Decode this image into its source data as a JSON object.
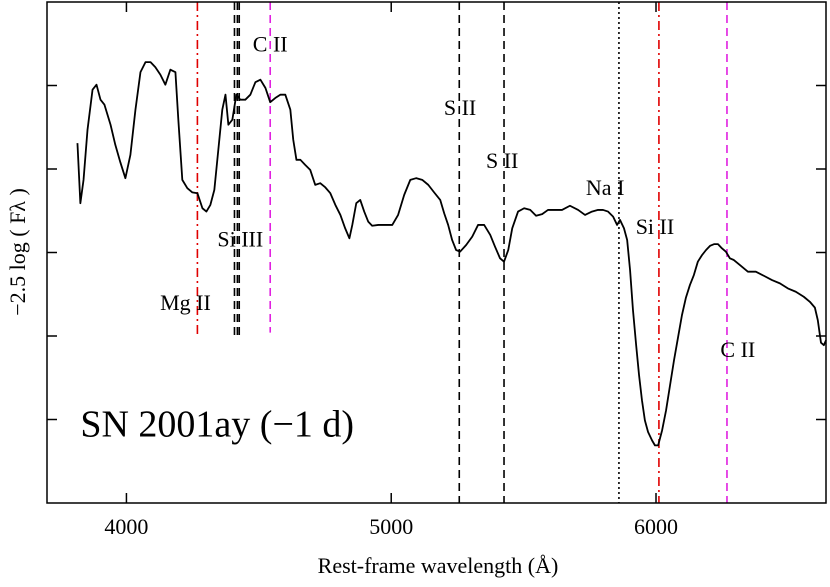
{
  "chart_data": {
    "type": "line",
    "xlabel": "Rest-frame wavelength (Å)",
    "ylabel": "−2.5 log ( Fλ )",
    "xlim": [
      3700,
      6642
    ],
    "xticks": [
      4000,
      5000,
      6000
    ],
    "ylim": [
      0,
      6
    ],
    "yticks": [
      1,
      2,
      3,
      4,
      5
    ],
    "y_inverted": true,
    "series": [
      {
        "color": "#000000",
        "x": [
          3815,
          3826,
          3838,
          3853,
          3872,
          3887,
          3902,
          3917,
          3940,
          3958,
          3977,
          3996,
          4015,
          4034,
          4053,
          4072,
          4091,
          4109,
          4128,
          4147,
          4166,
          4185,
          4196,
          4211,
          4230,
          4249,
          4268,
          4287,
          4302,
          4317,
          4332,
          4347,
          4362,
          4374,
          4385,
          4400,
          4415,
          4430,
          4449,
          4468,
          4487,
          4506,
          4525,
          4543,
          4562,
          4581,
          4600,
          4619,
          4630,
          4642,
          4657,
          4675,
          4694,
          4713,
          4732,
          4751,
          4770,
          4789,
          4808,
          4826,
          4842,
          4853,
          4868,
          4883,
          4898,
          4913,
          4928,
          4951,
          4977,
          5004,
          5026,
          5049,
          5072,
          5094,
          5117,
          5140,
          5162,
          5185,
          5200,
          5215,
          5230,
          5245,
          5260,
          5283,
          5306,
          5328,
          5351,
          5374,
          5392,
          5411,
          5426,
          5442,
          5457,
          5479,
          5502,
          5525,
          5547,
          5570,
          5592,
          5619,
          5645,
          5675,
          5706,
          5732,
          5758,
          5781,
          5800,
          5819,
          5838,
          5853,
          5864,
          5879,
          5891,
          5902,
          5913,
          5925,
          5936,
          5947,
          5958,
          5970,
          5985,
          5996,
          6008,
          6023,
          6038,
          6053,
          6068,
          6083,
          6098,
          6113,
          6128,
          6143,
          6158,
          6174,
          6189,
          6204,
          6219,
          6234,
          6249,
          6264,
          6279,
          6294,
          6317,
          6347,
          6377,
          6408,
          6438,
          6468,
          6498,
          6528,
          6558,
          6581,
          6600,
          6611,
          6623,
          6634,
          6642
        ],
        "values": [
          1.69,
          2.41,
          2.13,
          1.53,
          1.05,
          0.99,
          1.17,
          1.23,
          1.47,
          1.71,
          1.92,
          2.11,
          1.83,
          1.29,
          0.84,
          0.72,
          0.72,
          0.78,
          0.87,
          0.99,
          0.81,
          0.84,
          1.41,
          2.13,
          2.23,
          2.28,
          2.29,
          2.47,
          2.51,
          2.43,
          2.25,
          1.77,
          1.29,
          1.11,
          1.47,
          1.41,
          1.11,
          1.17,
          1.17,
          1.11,
          0.96,
          0.93,
          1.03,
          1.2,
          1.15,
          1.11,
          1.11,
          1.29,
          1.65,
          1.89,
          1.89,
          1.95,
          2.01,
          2.19,
          2.17,
          2.22,
          2.29,
          2.43,
          2.55,
          2.71,
          2.83,
          2.67,
          2.41,
          2.37,
          2.51,
          2.63,
          2.68,
          2.67,
          2.67,
          2.67,
          2.55,
          2.31,
          2.13,
          2.11,
          2.13,
          2.19,
          2.28,
          2.37,
          2.53,
          2.67,
          2.85,
          2.97,
          2.99,
          2.91,
          2.81,
          2.67,
          2.67,
          2.79,
          2.93,
          3.07,
          3.11,
          2.97,
          2.71,
          2.51,
          2.47,
          2.49,
          2.56,
          2.54,
          2.49,
          2.49,
          2.49,
          2.44,
          2.49,
          2.55,
          2.51,
          2.49,
          2.49,
          2.51,
          2.57,
          2.67,
          2.61,
          2.71,
          2.85,
          3.21,
          3.69,
          4.11,
          4.47,
          4.77,
          5.01,
          5.15,
          5.25,
          5.31,
          5.31,
          5.13,
          4.89,
          4.59,
          4.29,
          4.02,
          3.75,
          3.54,
          3.39,
          3.27,
          3.11,
          3.03,
          2.97,
          2.92,
          2.9,
          2.9,
          2.95,
          2.99,
          3.07,
          3.09,
          3.15,
          3.23,
          3.23,
          3.28,
          3.33,
          3.37,
          3.43,
          3.47,
          3.53,
          3.59,
          3.66,
          3.81,
          4.08,
          4.11,
          4.05
        ]
      }
    ],
    "vlines": [
      {
        "x": 4268,
        "span": [
          0,
          4.0
        ],
        "color": "#e00000",
        "style": "dashdot"
      },
      {
        "x": 4408,
        "span": [
          0,
          3.99
        ],
        "color": "#000000",
        "style": "dashed"
      },
      {
        "x": 4419,
        "span": [
          0,
          3.99
        ],
        "color": "#000000",
        "style": "dashed"
      },
      {
        "x": 4426,
        "span": [
          0,
          4.0
        ],
        "color": "#000000",
        "style": "dashed"
      },
      {
        "x": 4543,
        "span": [
          0,
          3.96
        ],
        "color": "#e020e0",
        "style": "dashed"
      },
      {
        "x": 5257,
        "span": [
          0,
          6
        ],
        "color": "#000000",
        "style": "dashed"
      },
      {
        "x": 5426,
        "span": [
          0,
          6
        ],
        "color": "#000000",
        "style": "dashed"
      },
      {
        "x": 5860,
        "span": [
          0,
          6
        ],
        "color": "#000000",
        "style": "dotted"
      },
      {
        "x": 6011,
        "span": [
          0,
          6
        ],
        "color": "#e00000",
        "style": "dashdot"
      },
      {
        "x": 6268,
        "span": [
          0,
          6
        ],
        "color": "#e020e0",
        "style": "dashed"
      }
    ],
    "annotations": [
      {
        "text": "Mg II",
        "x": 4223,
        "y": 3.63
      },
      {
        "text": "Si III",
        "x": 4430,
        "y": 2.87
      },
      {
        "text": "C II",
        "x": 4543,
        "y": 0.53
      },
      {
        "text": "S II",
        "x": 5260,
        "y": 1.29
      },
      {
        "text": "S II",
        "x": 5419,
        "y": 1.93
      },
      {
        "text": "Na I",
        "x": 5808,
        "y": 2.25
      },
      {
        "text": "Si II",
        "x": 5996,
        "y": 2.72
      },
      {
        "text": "C II",
        "x": 6309,
        "y": 4.19
      }
    ],
    "label": {
      "text": "SN 2001ay (−1 d)",
      "x": 3826,
      "y": 5.1
    }
  }
}
